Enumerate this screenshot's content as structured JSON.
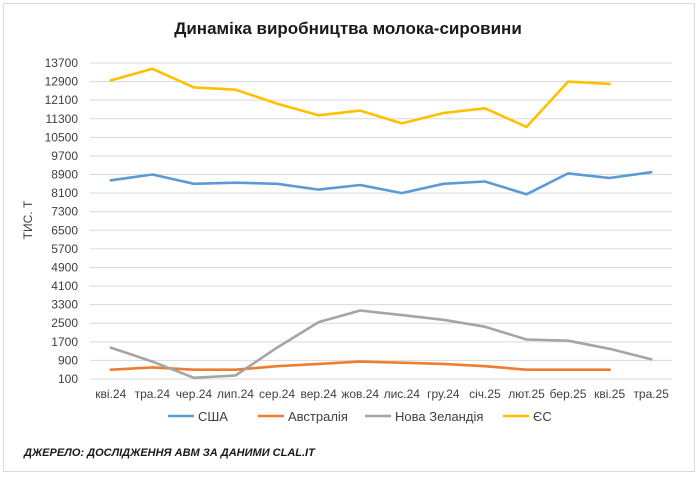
{
  "chart_data": {
    "type": "line",
    "title": "Динаміка виробництва молока-сировини",
    "ylabel": "ТИС. Т",
    "xlabel": "",
    "ylim": [
      100,
      13700
    ],
    "yticks": [
      100,
      900,
      1700,
      2500,
      3300,
      4100,
      4900,
      5700,
      6500,
      7300,
      8100,
      8900,
      9700,
      10500,
      11300,
      12100,
      12900,
      13700
    ],
    "categories": [
      "кві.24",
      "тра.24",
      "чер.24",
      "лип.24",
      "сер.24",
      "вер.24",
      "жов.24",
      "лис.24",
      "гру.24",
      "січ.25",
      "лют.25",
      "бер.25",
      "кві.25",
      "тра.25"
    ],
    "grid": true,
    "legend_position": "bottom",
    "series": [
      {
        "name": "США",
        "color": "#5b9bd5",
        "values": [
          8650,
          8900,
          8500,
          8550,
          8500,
          8250,
          8450,
          8100,
          8500,
          8600,
          8050,
          8950,
          8750,
          9000
        ]
      },
      {
        "name": "Австралія",
        "color": "#ed7d31",
        "values": [
          500,
          600,
          500,
          500,
          650,
          750,
          850,
          800,
          750,
          650,
          500,
          500,
          500,
          null
        ]
      },
      {
        "name": "Нова Зеландія",
        "color": "#a5a5a5",
        "values": [
          1450,
          850,
          150,
          250,
          1450,
          2550,
          3050,
          2850,
          2650,
          2350,
          1800,
          1750,
          1400,
          950
        ]
      },
      {
        "name": "ЄС",
        "color": "#ffc000",
        "values": [
          12950,
          13450,
          12650,
          12550,
          11950,
          11450,
          11650,
          11100,
          11550,
          11750,
          10950,
          12900,
          12800,
          null
        ]
      }
    ]
  },
  "source": "ДЖЕРЕЛО: ДОСЛІДЖЕННЯ АВМ ЗА ДАНИМИ CLAL.IT"
}
